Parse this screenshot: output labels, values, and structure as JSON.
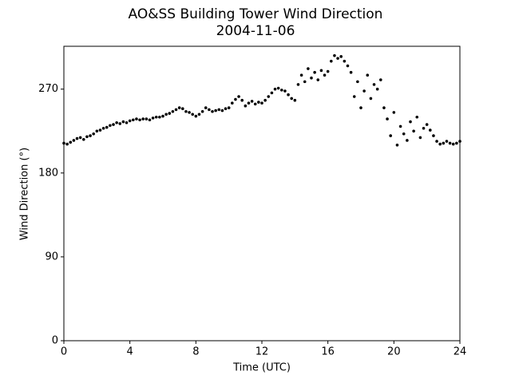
{
  "chart_data": {
    "type": "scatter",
    "title": "AO&SS Building Tower Wind Direction",
    "subtitle": "2004-11-06",
    "x_label": "Time (UTC)",
    "y_label": "Wind Direction (°)",
    "color": "#000000",
    "grid": false,
    "xlim": [
      0,
      24
    ],
    "xticks": [
      0,
      4,
      8,
      12,
      16,
      20,
      24
    ],
    "ylim": [
      0,
      316
    ],
    "yticks": [
      0,
      90,
      180,
      270
    ],
    "x": [
      0.0,
      0.2,
      0.4,
      0.6,
      0.8,
      1.0,
      1.2,
      1.4,
      1.6,
      1.8,
      2.0,
      2.2,
      2.4,
      2.6,
      2.8,
      3.0,
      3.2,
      3.4,
      3.6,
      3.8,
      4.0,
      4.2,
      4.4,
      4.6,
      4.8,
      5.0,
      5.2,
      5.4,
      5.6,
      5.8,
      6.0,
      6.2,
      6.4,
      6.6,
      6.8,
      7.0,
      7.2,
      7.4,
      7.6,
      7.8,
      8.0,
      8.2,
      8.4,
      8.6,
      8.8,
      9.0,
      9.2,
      9.4,
      9.6,
      9.8,
      10.0,
      10.2,
      10.4,
      10.6,
      10.8,
      11.0,
      11.2,
      11.4,
      11.6,
      11.8,
      12.0,
      12.2,
      12.4,
      12.6,
      12.8,
      13.0,
      13.2,
      13.4,
      13.6,
      13.8,
      14.0,
      14.2,
      14.4,
      14.6,
      14.8,
      15.0,
      15.2,
      15.4,
      15.6,
      15.8,
      16.0,
      16.2,
      16.4,
      16.6,
      16.8,
      17.0,
      17.2,
      17.4,
      17.6,
      17.8,
      18.0,
      18.2,
      18.4,
      18.6,
      18.8,
      19.0,
      19.2,
      19.4,
      19.6,
      19.8,
      20.0,
      20.2,
      20.4,
      20.6,
      20.8,
      21.0,
      21.2,
      21.4,
      21.6,
      21.8,
      22.0,
      22.2,
      22.4,
      22.6,
      22.8,
      23.0,
      23.2,
      23.4,
      23.6,
      23.8,
      24.0
    ],
    "values": [
      212,
      211,
      213,
      215,
      217,
      218,
      216,
      219,
      220,
      222,
      225,
      226,
      228,
      229,
      231,
      232,
      234,
      233,
      235,
      234,
      236,
      237,
      238,
      237,
      238,
      238,
      237,
      239,
      240,
      240,
      241,
      243,
      244,
      246,
      248,
      250,
      249,
      246,
      245,
      243,
      241,
      243,
      246,
      250,
      248,
      246,
      247,
      248,
      247,
      249,
      250,
      255,
      259,
      262,
      258,
      252,
      255,
      257,
      254,
      256,
      255,
      258,
      262,
      266,
      270,
      271,
      269,
      268,
      264,
      260,
      258,
      275,
      285,
      278,
      292,
      282,
      288,
      280,
      290,
      285,
      289,
      300,
      306,
      303,
      305,
      300,
      295,
      288,
      262,
      278,
      250,
      268,
      285,
      260,
      275,
      270,
      280,
      250,
      238,
      220,
      245,
      210,
      230,
      222,
      215,
      235,
      225,
      240,
      218,
      228,
      232,
      226,
      220,
      214,
      211,
      212,
      214,
      212,
      211,
      212,
      214
    ]
  }
}
